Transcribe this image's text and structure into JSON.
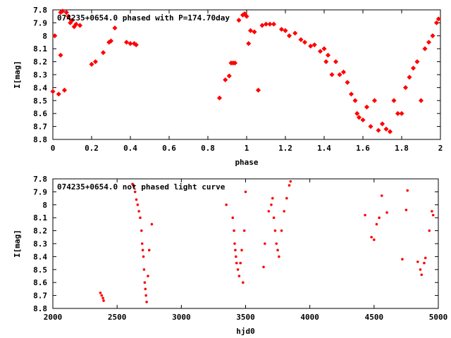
{
  "colors": {
    "points": "#ff0000",
    "axes": "#000000",
    "background": "#ffffff"
  },
  "chart_data": [
    {
      "type": "scatter",
      "title": "074235+0654.0 phased with P=174.70day",
      "xlabel": "phase",
      "ylabel": "I[mag]",
      "xlim": [
        0,
        2
      ],
      "ylim": [
        8.8,
        7.8
      ],
      "y_inverted": true,
      "grid": false,
      "xticks": [
        "0",
        "0.2",
        "0.4",
        "0.6",
        "0.8",
        "1",
        "1.2",
        "1.4",
        "1.6",
        "1.8",
        "2"
      ],
      "yticks": [
        "7.8",
        "7.9",
        "8",
        "8.1",
        "8.2",
        "8.3",
        "8.4",
        "8.5",
        "8.6",
        "8.7",
        "8.8"
      ],
      "series": [
        {
          "x": [
            0.0,
            0.01,
            0.03,
            0.04,
            0.04,
            0.05,
            0.06,
            0.07,
            0.08,
            0.09,
            0.1,
            0.11,
            0.12,
            0.14,
            0.2,
            0.22,
            0.26,
            0.29,
            0.3,
            0.32,
            0.38,
            0.4,
            0.42,
            0.43,
            0.86,
            0.89,
            0.91,
            0.92,
            0.93,
            0.94,
            0.96,
            0.98,
            0.99,
            1.0,
            1.01,
            1.02,
            1.04,
            1.06,
            1.08,
            1.1,
            1.12,
            1.14,
            1.18,
            1.2,
            1.22,
            1.25,
            1.28,
            1.3,
            1.33,
            1.35,
            1.38,
            1.4,
            1.41,
            1.42,
            1.44,
            1.46,
            1.48,
            1.5,
            1.52,
            1.54,
            1.56,
            1.57,
            1.58,
            1.6,
            1.62,
            1.64,
            1.66,
            1.68,
            1.7,
            1.72,
            1.74,
            1.76,
            1.78,
            1.8,
            1.82,
            1.84,
            1.86,
            1.88,
            1.9,
            1.92,
            1.94,
            1.96,
            1.98,
            1.99
          ],
          "y": [
            8.43,
            8.0,
            8.45,
            7.82,
            8.15,
            7.81,
            8.42,
            7.82,
            7.85,
            7.9,
            7.88,
            7.93,
            7.91,
            7.92,
            8.22,
            8.2,
            8.13,
            8.05,
            8.04,
            7.94,
            8.05,
            8.06,
            8.06,
            8.07,
            8.48,
            8.34,
            8.31,
            8.21,
            8.21,
            8.21,
            7.88,
            7.84,
            7.83,
            7.85,
            8.06,
            7.96,
            7.97,
            8.42,
            7.92,
            7.91,
            7.91,
            7.91,
            7.95,
            7.96,
            8.0,
            7.98,
            8.03,
            8.05,
            8.08,
            8.07,
            8.12,
            8.1,
            8.2,
            8.15,
            8.3,
            8.2,
            8.3,
            8.28,
            8.36,
            8.45,
            8.5,
            8.6,
            8.63,
            8.65,
            8.55,
            8.7,
            8.5,
            8.73,
            8.68,
            8.72,
            8.74,
            8.5,
            8.6,
            8.6,
            8.4,
            8.32,
            8.25,
            8.2,
            8.5,
            8.1,
            8.05,
            8.0,
            7.9,
            7.87
          ]
        }
      ]
    },
    {
      "type": "scatter",
      "title": "074235+0654.0 not phased light curve",
      "xlabel": "hjd0",
      "ylabel": "I[mag]",
      "xlim": [
        2000,
        5000
      ],
      "ylim": [
        8.8,
        7.8
      ],
      "y_inverted": true,
      "grid": false,
      "xticks": [
        "2000",
        "2500",
        "3000",
        "3500",
        "4000",
        "4500",
        "5000"
      ],
      "yticks": [
        "7.8",
        "7.9",
        "8",
        "8.1",
        "8.2",
        "8.3",
        "8.4",
        "8.5",
        "8.6",
        "8.7",
        "8.8"
      ],
      "series": [
        {
          "x": [
            2370,
            2380,
            2390,
            2395,
            2620,
            2630,
            2640,
            2650,
            2660,
            2670,
            2680,
            2690,
            2695,
            2700,
            2705,
            2710,
            2715,
            2720,
            2725,
            2730,
            2740,
            2750,
            2770,
            3350,
            3400,
            3410,
            3415,
            3420,
            3425,
            3430,
            3440,
            3450,
            3460,
            3470,
            3480,
            3490,
            3500,
            3640,
            3650,
            3680,
            3700,
            3710,
            3720,
            3730,
            3740,
            3750,
            3760,
            3780,
            3800,
            3820,
            3840,
            3850,
            4430,
            4480,
            4500,
            4520,
            4540,
            4560,
            4600,
            4720,
            4750,
            4760,
            4840,
            4860,
            4870,
            4890,
            4900,
            4930,
            4950,
            4960
          ],
          "y": [
            8.68,
            8.7,
            8.72,
            8.74,
            7.84,
            7.86,
            7.9,
            7.96,
            8.0,
            8.05,
            8.1,
            8.2,
            8.3,
            8.35,
            8.4,
            8.5,
            8.6,
            8.65,
            8.7,
            8.75,
            8.55,
            8.35,
            8.15,
            8.0,
            8.1,
            8.2,
            8.3,
            8.35,
            8.4,
            8.45,
            8.5,
            8.55,
            8.45,
            8.35,
            8.6,
            8.2,
            7.9,
            8.48,
            8.3,
            8.05,
            8.0,
            7.95,
            8.1,
            8.2,
            8.3,
            8.35,
            8.4,
            8.2,
            8.05,
            7.95,
            7.85,
            7.82,
            8.08,
            8.25,
            8.27,
            8.15,
            8.1,
            7.93,
            8.06,
            8.42,
            8.04,
            7.89,
            8.44,
            8.5,
            8.54,
            8.45,
            8.41,
            8.2,
            8.05,
            8.08
          ]
        }
      ]
    }
  ]
}
